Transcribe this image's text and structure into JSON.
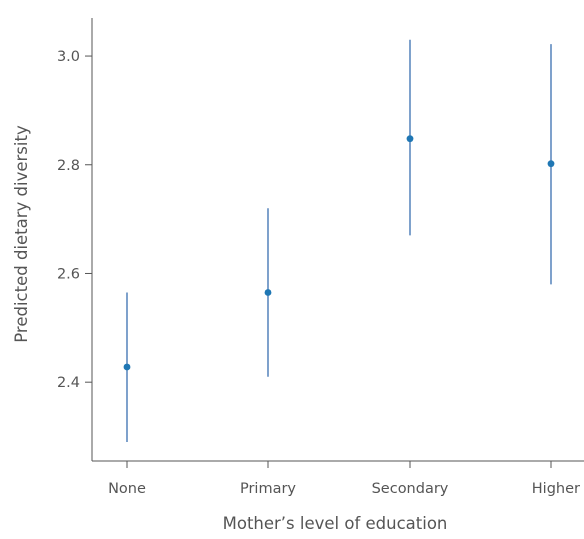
{
  "colors": {
    "point": "#1f77b4",
    "errorbar": "#3a6fb0",
    "axis": "#555555",
    "text": "#555555"
  },
  "chart_data": {
    "type": "scatter",
    "title": "",
    "xlabel": "Mother’s level of education",
    "ylabel": "Predicted dietary diversity",
    "categories": [
      "None",
      "Primary",
      "Secondary",
      "Higher"
    ],
    "series": [
      {
        "values": [
          2.428,
          2.565,
          2.848,
          2.802
        ],
        "lower": [
          2.29,
          2.41,
          2.67,
          2.58
        ],
        "upper": [
          2.565,
          2.72,
          3.03,
          3.022
        ]
      }
    ],
    "ylim": [
      2.255,
      3.07
    ],
    "yticks": [
      "2.4",
      "2.6",
      "2.8",
      "3.0"
    ],
    "ytick_values": [
      2.4,
      2.6,
      2.8,
      3.0
    ],
    "grid": false,
    "legend": "none"
  }
}
